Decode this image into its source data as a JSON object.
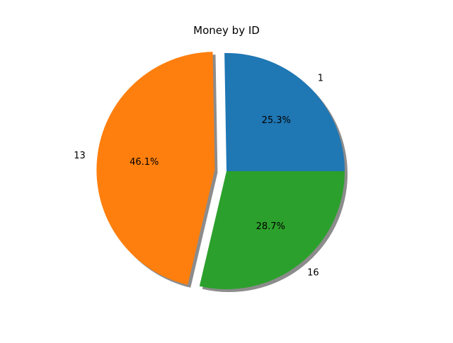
{
  "chart_data": {
    "type": "pie",
    "title": "Money by ID",
    "slices": [
      {
        "label": "1",
        "value": 25.3,
        "pct_label": "25.3%",
        "color": "#1f77b4",
        "exploded": false
      },
      {
        "label": "13",
        "value": 46.1,
        "pct_label": "46.1%",
        "color": "#ff7f0e",
        "exploded": true
      },
      {
        "label": "16",
        "value": 28.7,
        "pct_label": "28.7%",
        "color": "#2ca02c",
        "exploded": false
      }
    ],
    "start_angle": 0,
    "counterclockwise": true,
    "shadow": true,
    "legend": "none"
  }
}
